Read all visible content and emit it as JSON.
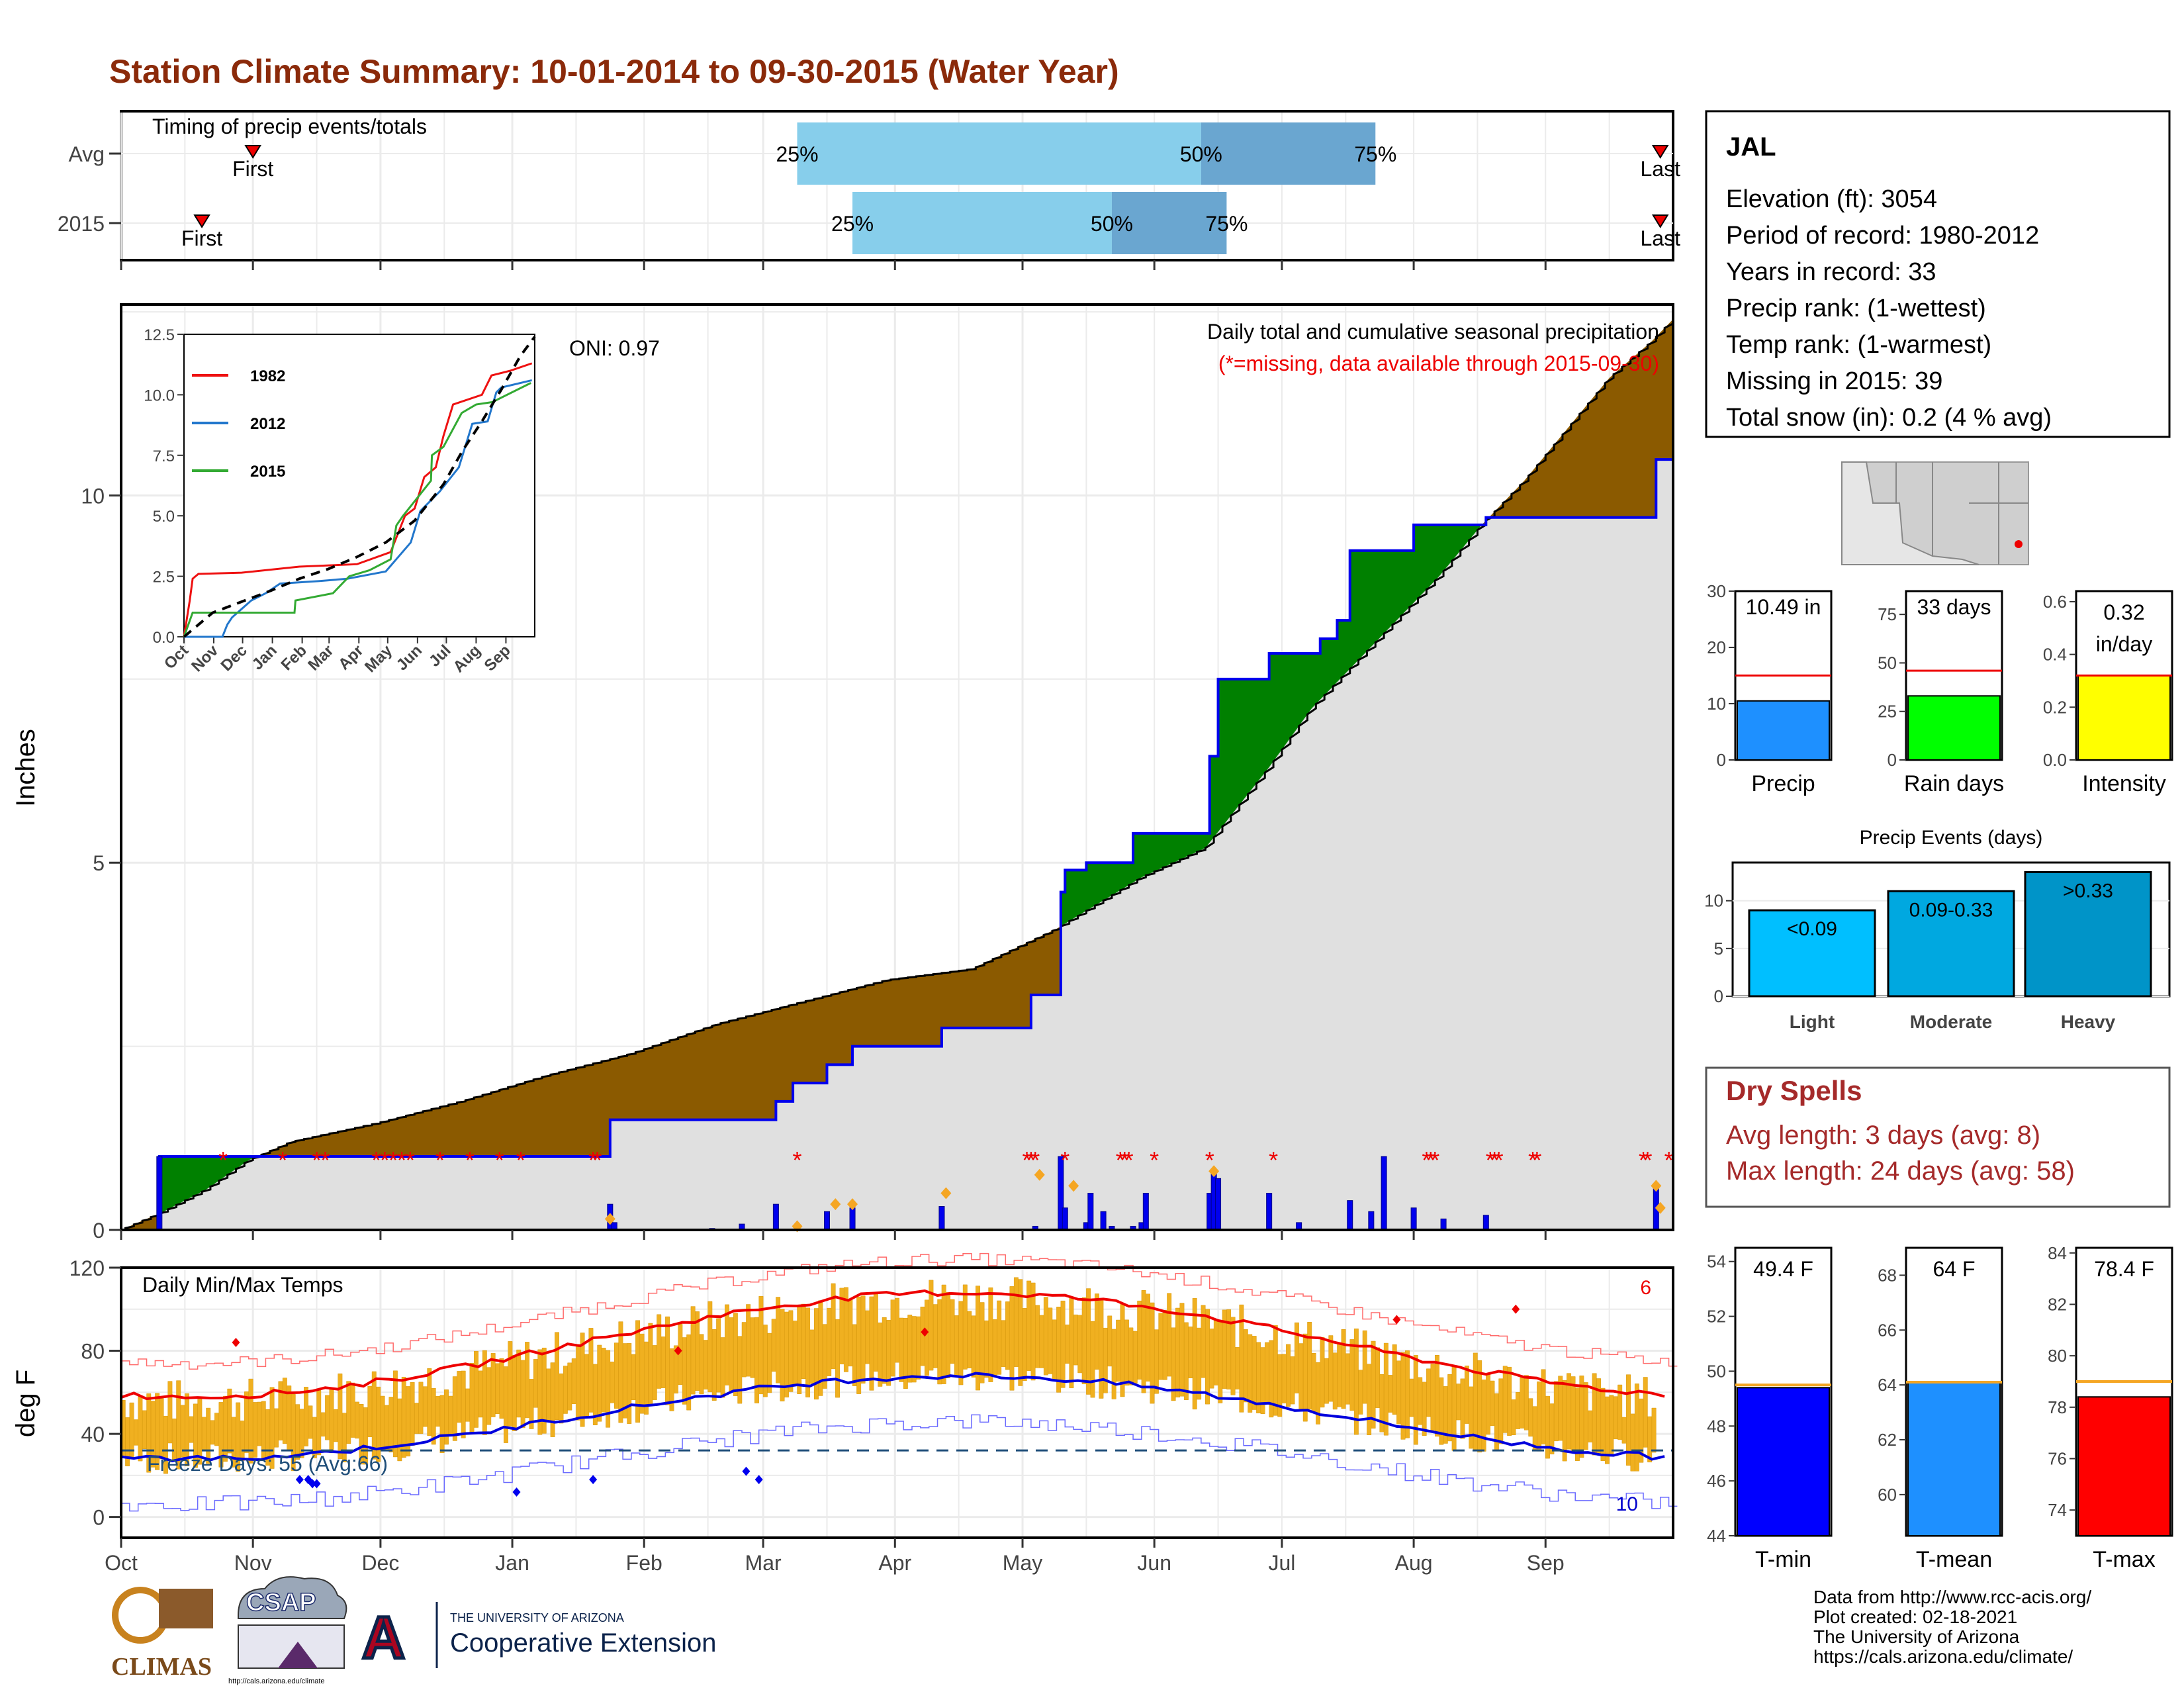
{
  "title": "Station Climate Summary: 10-01-2014 to 09-30-2015 (Water Year)",
  "colors": {
    "title": "#8b2a0a",
    "brown": "#8b5a00",
    "green": "#008000",
    "blue_line": "#0000ee",
    "gray_fill": "#e0e0e0",
    "light_blue": "#87ceeb",
    "mid_blue": "#6aa6d0",
    "tmin_line": "#0000dd",
    "tmax_line": "#ee0000",
    "bar_orange": "#f0b020",
    "dry_red": "#a52a2a",
    "precip_bar": "#1e90ff",
    "raindays_bar": "#00ff00",
    "intensity_bar": "#ffff00",
    "light_event": "#00bfff",
    "moderate_event": "#00a8e0",
    "heavy_event": "#0094c8",
    "tmin_bar": "#0000ff",
    "tmean_bar": "#1e90ff",
    "tmax_bar": "#ff0000"
  },
  "timing": {
    "label": "Timing of precip events/totals",
    "rows": [
      {
        "label": "Avg",
        "first_label": "First",
        "last_label": "Last",
        "q25": "25%",
        "q50": "50%",
        "q75": "75%",
        "first_doy": 31,
        "last_doy": 362,
        "q25_doy": 159,
        "q50_doy": 254,
        "q75_doy": 295
      },
      {
        "label": "2015",
        "first_label": "First",
        "last_label": "Last",
        "q25": "25%",
        "q50": "50%",
        "q75": "75%",
        "first_doy": 19,
        "last_doy": 362,
        "q25_doy": 172,
        "q50_doy": 233,
        "q75_doy": 260
      }
    ]
  },
  "precip_panel": {
    "ylabel": "Inches",
    "oni": "ONI: 0.97",
    "caption1": "Daily total and cumulative seasonal precipitation",
    "caption2": "(*=missing, data available through 2015-09-30)",
    "yticks": [
      "0",
      "5",
      "10"
    ],
    "cumulative_2015": [
      [
        0,
        0
      ],
      [
        9,
        0
      ],
      [
        9,
        1.0
      ],
      [
        115,
        1.0
      ],
      [
        115,
        1.5
      ],
      [
        154,
        1.5
      ],
      [
        154,
        1.75
      ],
      [
        158,
        1.75
      ],
      [
        158,
        2.0
      ],
      [
        166,
        2.0
      ],
      [
        166,
        2.25
      ],
      [
        172,
        2.25
      ],
      [
        172,
        2.5
      ],
      [
        193,
        2.5
      ],
      [
        193,
        2.75
      ],
      [
        214,
        2.75
      ],
      [
        214,
        3.2
      ],
      [
        221,
        3.2
      ],
      [
        221,
        4.6
      ],
      [
        222,
        4.6
      ],
      [
        222,
        4.9
      ],
      [
        227,
        4.9
      ],
      [
        227,
        5.0
      ],
      [
        238,
        5.0
      ],
      [
        238,
        5.4
      ],
      [
        256,
        5.4
      ],
      [
        256,
        6.45
      ],
      [
        258,
        6.45
      ],
      [
        258,
        7.5
      ],
      [
        270,
        7.5
      ],
      [
        270,
        7.85
      ],
      [
        282,
        7.85
      ],
      [
        282,
        8.05
      ],
      [
        286,
        8.05
      ],
      [
        286,
        8.3
      ],
      [
        289,
        8.3
      ],
      [
        289,
        9.25
      ],
      [
        304,
        9.25
      ],
      [
        304,
        9.6
      ],
      [
        321,
        9.6
      ],
      [
        321,
        9.7
      ],
      [
        361,
        9.7
      ],
      [
        361,
        10.49
      ],
      [
        365,
        10.49
      ]
    ],
    "avg_cumulative": [
      [
        0,
        0
      ],
      [
        10,
        0.25
      ],
      [
        20,
        0.55
      ],
      [
        30,
        0.95
      ],
      [
        40,
        1.2
      ],
      [
        60,
        1.45
      ],
      [
        80,
        1.75
      ],
      [
        100,
        2.1
      ],
      [
        120,
        2.4
      ],
      [
        140,
        2.8
      ],
      [
        160,
        3.1
      ],
      [
        180,
        3.4
      ],
      [
        200,
        3.55
      ],
      [
        220,
        4.1
      ],
      [
        240,
        4.8
      ],
      [
        255,
        5.2
      ],
      [
        270,
        6.3
      ],
      [
        280,
        7.1
      ],
      [
        290,
        7.7
      ],
      [
        300,
        8.3
      ],
      [
        310,
        8.9
      ],
      [
        320,
        9.6
      ],
      [
        330,
        10.2
      ],
      [
        340,
        10.9
      ],
      [
        350,
        11.6
      ],
      [
        360,
        12.1
      ],
      [
        365,
        12.4
      ]
    ],
    "daily_bars": [
      [
        9,
        1.0
      ],
      [
        83,
        0.01
      ],
      [
        115,
        0.35
      ],
      [
        116,
        0.1
      ],
      [
        139,
        0.02
      ],
      [
        146,
        0.08
      ],
      [
        154,
        0.35
      ],
      [
        166,
        0.25
      ],
      [
        172,
        0.3
      ],
      [
        193,
        0.32
      ],
      [
        215,
        0.05
      ],
      [
        216,
        0.01
      ],
      [
        221,
        1.0
      ],
      [
        222,
        0.3
      ],
      [
        227,
        0.1
      ],
      [
        228,
        0.5
      ],
      [
        231,
        0.25
      ],
      [
        233,
        0.05
      ],
      [
        238,
        0.05
      ],
      [
        240,
        0.1
      ],
      [
        241,
        0.5
      ],
      [
        256,
        0.5
      ],
      [
        257,
        0.8
      ],
      [
        258,
        0.7
      ],
      [
        270,
        0.5
      ],
      [
        277,
        0.1
      ],
      [
        289,
        0.4
      ],
      [
        294,
        0.25
      ],
      [
        297,
        1.0
      ],
      [
        304,
        0.3
      ],
      [
        311,
        0.15
      ],
      [
        321,
        0.2
      ],
      [
        361,
        0.6
      ]
    ],
    "missing_days": [
      24,
      38,
      46,
      48,
      60,
      62,
      64,
      66,
      68,
      75,
      82,
      89,
      94,
      111,
      112,
      159,
      213,
      214,
      215,
      222,
      235,
      236,
      237,
      243,
      256,
      271,
      307,
      308,
      309,
      322,
      323,
      324,
      332,
      333,
      358,
      359,
      364
    ],
    "event_markers": [
      [
        115,
        0.15
      ],
      [
        159,
        0.05
      ],
      [
        168,
        0.35
      ],
      [
        172,
        0.35
      ],
      [
        194,
        0.5
      ],
      [
        216,
        0.75
      ],
      [
        224,
        0.6
      ],
      [
        257,
        0.8
      ],
      [
        361,
        0.6
      ],
      [
        362,
        0.3
      ]
    ]
  },
  "inset": {
    "yticks": [
      "0.0",
      "2.5",
      "5.0",
      "7.5",
      "10.0",
      "12.5"
    ],
    "xticks": [
      "Oct",
      "Nov",
      "Dec",
      "Jan",
      "Feb",
      "Mar",
      "Apr",
      "May",
      "Jun",
      "Jul",
      "Aug",
      "Sep"
    ],
    "legend": [
      {
        "name": "1982",
        "color": "#ee1111"
      },
      {
        "name": "2012",
        "color": "#2277cc"
      },
      {
        "name": "2015",
        "color": "#33aa33"
      }
    ],
    "series": {
      "1982": [
        [
          0,
          0
        ],
        [
          6,
          1.5
        ],
        [
          9,
          2.4
        ],
        [
          15,
          2.6
        ],
        [
          60,
          2.65
        ],
        [
          120,
          2.9
        ],
        [
          180,
          3.0
        ],
        [
          215,
          3.5
        ],
        [
          223,
          4.3
        ],
        [
          230,
          5.0
        ],
        [
          240,
          5.3
        ],
        [
          250,
          6.6
        ],
        [
          262,
          7.0
        ],
        [
          270,
          8.3
        ],
        [
          280,
          9.6
        ],
        [
          310,
          10.0
        ],
        [
          320,
          10.8
        ],
        [
          340,
          11.0
        ],
        [
          362,
          11.3
        ]
      ],
      "2012": [
        [
          0,
          0
        ],
        [
          40,
          0
        ],
        [
          45,
          0.5
        ],
        [
          50,
          0.8
        ],
        [
          70,
          1.5
        ],
        [
          85,
          1.8
        ],
        [
          100,
          2.2
        ],
        [
          140,
          2.3
        ],
        [
          170,
          2.4
        ],
        [
          210,
          2.7
        ],
        [
          236,
          3.9
        ],
        [
          246,
          5.2
        ],
        [
          266,
          6.0
        ],
        [
          286,
          7.0
        ],
        [
          300,
          8.8
        ],
        [
          316,
          8.9
        ],
        [
          325,
          10.1
        ],
        [
          330,
          10.3
        ],
        [
          362,
          10.6
        ]
      ],
      "2015": [
        [
          0,
          0
        ],
        [
          9,
          1.0
        ],
        [
          115,
          1.0
        ],
        [
          116,
          1.5
        ],
        [
          155,
          1.8
        ],
        [
          172,
          2.5
        ],
        [
          193,
          2.75
        ],
        [
          215,
          3.2
        ],
        [
          221,
          4.6
        ],
        [
          228,
          5.0
        ],
        [
          257,
          6.45
        ],
        [
          258,
          7.5
        ],
        [
          270,
          7.85
        ],
        [
          289,
          9.25
        ],
        [
          304,
          9.6
        ],
        [
          321,
          9.7
        ],
        [
          361,
          10.49
        ]
      ],
      "average": [
        [
          0,
          0
        ],
        [
          30,
          1.0
        ],
        [
          60,
          1.45
        ],
        [
          90,
          1.9
        ],
        [
          120,
          2.4
        ],
        [
          150,
          2.8
        ],
        [
          180,
          3.3
        ],
        [
          210,
          3.9
        ],
        [
          240,
          4.8
        ],
        [
          270,
          6.3
        ],
        [
          290,
          7.7
        ],
        [
          310,
          8.9
        ],
        [
          330,
          10.2
        ],
        [
          350,
          11.6
        ],
        [
          365,
          12.4
        ]
      ]
    }
  },
  "temp_panel": {
    "ylabel": "deg F",
    "label": "Daily Min/Max Temps",
    "freeze_label": "Freeze Days: 55 (Avg:66)",
    "record_high_count": "6",
    "record_low_count": "10",
    "yticks": [
      "0",
      "40",
      "80",
      "120"
    ],
    "xticks": [
      "Oct",
      "Nov",
      "Dec",
      "Jan",
      "Feb",
      "Mar",
      "Apr",
      "May",
      "Jun",
      "Jul",
      "Aug",
      "Sep"
    ],
    "freeze_line": 32
  },
  "info": {
    "station": "JAL",
    "lines": [
      "Elevation (ft): 3054",
      "Period of record: 1980-2012",
      "Years in record: 33",
      "Precip rank:  (1-wettest)",
      "Temp rank:  (1-warmest)",
      "Missing in 2015: 39",
      "Total snow (in): 0.2 (4 % avg)"
    ]
  },
  "summary_bars": [
    {
      "label": "Precip",
      "value_text": "10.49 in",
      "value": 10.49,
      "avg": 15,
      "ymax": 30,
      "yticks": [
        "0",
        "10",
        "20",
        "30"
      ],
      "tickvals": [
        0,
        10,
        20,
        30
      ],
      "color": "#1e90ff"
    },
    {
      "label": "Rain days",
      "value_text": "33 days",
      "value": 33,
      "avg": 46,
      "ymax": 87,
      "yticks": [
        "0",
        "25",
        "50",
        "75"
      ],
      "tickvals": [
        0,
        25,
        50,
        75
      ],
      "color": "#00ff00"
    },
    {
      "label": "Intensity",
      "value_text": "0.32 in/day",
      "value": 0.32,
      "avg": 0.32,
      "ymax": 0.64,
      "yticks": [
        "0.0",
        "0.2",
        "0.4",
        "0.6"
      ],
      "tickvals": [
        0,
        0.2,
        0.4,
        0.6
      ],
      "color": "#ffff00"
    }
  ],
  "events": {
    "title": "Precip Events (days)",
    "yticks": [
      "0",
      "5",
      "10"
    ],
    "bars": [
      {
        "label": "Light",
        "text": "<0.09",
        "value": 9,
        "color": "#00bfff"
      },
      {
        "label": "Moderate",
        "text": "0.09-0.33",
        "value": 11,
        "color": "#00a8e0"
      },
      {
        "label": "Heavy",
        "text": ">0.33",
        "value": 13,
        "color": "#0094c8"
      }
    ]
  },
  "dry_spells": {
    "title": "Dry Spells",
    "line1": "Avg length: 3 days (avg: 8)",
    "line2": "Max length: 24 days (avg: 58)"
  },
  "temp_bars": [
    {
      "label": "T-min",
      "value_text": "49.4 F",
      "value": 49.4,
      "avg": 49.5,
      "ymin": 44,
      "ymax": 54.5,
      "yticks": [
        "44",
        "46",
        "48",
        "50",
        "52",
        "54"
      ],
      "tickvals": [
        44,
        46,
        48,
        50,
        52,
        54
      ],
      "color": "#0000ff"
    },
    {
      "label": "T-mean",
      "value_text": "64 F",
      "value": 64.1,
      "avg": 64.1,
      "ymin": 58.5,
      "ymax": 69,
      "yticks": [
        "60",
        "62",
        "64",
        "66",
        "68"
      ],
      "tickvals": [
        60,
        62,
        64,
        66,
        68
      ],
      "color": "#1e90ff"
    },
    {
      "label": "T-max",
      "value_text": "78.4 F",
      "value": 78.4,
      "avg": 79,
      "ymin": 73,
      "ymax": 84.2,
      "yticks": [
        "74",
        "76",
        "78",
        "80",
        "82",
        "84"
      ],
      "tickvals": [
        74,
        76,
        78,
        80,
        82,
        84
      ],
      "color": "#ff0000"
    }
  ],
  "credits": [
    "Data from http://www.rcc-acis.org/",
    "Plot created: 02-18-2021",
    "The University of Arizona",
    "https://cals.arizona.edu/climate/"
  ],
  "logos": {
    "climas": "CLIMAS",
    "csap": "CSAP",
    "csap_url": "http://cals.arizona.edu/climate",
    "ua_small": "THE UNIVERSITY OF ARIZONA",
    "ua_big": "Cooperative Extension",
    "ua_letter": "A"
  },
  "chart_data": [
    {
      "type": "area",
      "title": "Daily total and cumulative seasonal precipitation",
      "ylabel": "Inches",
      "ylim": [
        0,
        12.6
      ],
      "x_unit": "day of water year (0 = Oct 1)",
      "series": [
        {
          "name": "2015 cumulative",
          "ref": "precip_panel.cumulative_2015"
        },
        {
          "name": "Average cumulative",
          "ref": "precip_panel.avg_cumulative"
        }
      ]
    },
    {
      "type": "line",
      "title": "",
      "ylim": [
        0,
        12.5
      ],
      "series_names": [
        "1982",
        "2012",
        "2015"
      ]
    },
    {
      "type": "bar",
      "title": "Daily Min/Max Temps",
      "ylabel": "deg F",
      "ylim": [
        -10,
        120
      ],
      "freeze_line": 32
    },
    {
      "type": "bar",
      "categories": [
        "Precip",
        "Rain days",
        "Intensity"
      ],
      "values": [
        10.49,
        33,
        0.32
      ]
    },
    {
      "type": "bar",
      "title": "Precip Events (days)",
      "categories": [
        "Light",
        "Moderate",
        "Heavy"
      ],
      "values": [
        9,
        11,
        13
      ]
    },
    {
      "type": "bar",
      "categories": [
        "T-min",
        "T-mean",
        "T-max"
      ],
      "values": [
        49.4,
        64,
        78.4
      ]
    }
  ]
}
